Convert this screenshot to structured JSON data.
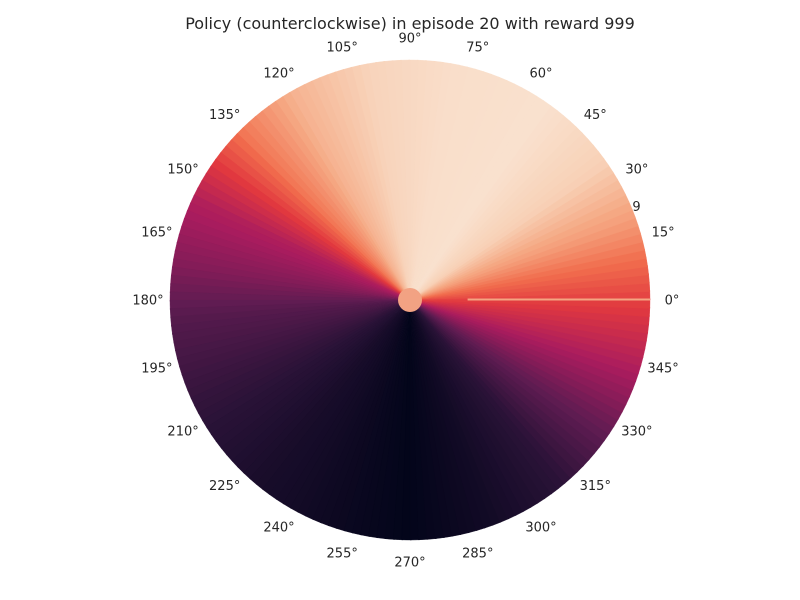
{
  "chart_data": {
    "type": "heatmap",
    "projection": "polar",
    "title": "Policy (counterclockwise) in episode 20 with reward 999",
    "angle_tick_labels": [
      "0°",
      "15°",
      "30°",
      "45°",
      "60°",
      "75°",
      "90°",
      "105°",
      "120°",
      "135°",
      "150°",
      "165°",
      "180°",
      "195°",
      "210°",
      "225°",
      "240°",
      "255°",
      "270°",
      "285°",
      "300°",
      "315°",
      "330°",
      "345°"
    ],
    "radial_tick_labels": [
      "9"
    ],
    "colormap": "rocket",
    "grid": false,
    "value_stops": [
      {
        "angle": 0,
        "value": 0.62
      },
      {
        "angle": 10,
        "value": 0.72
      },
      {
        "angle": 20,
        "value": 0.82
      },
      {
        "angle": 35,
        "value": 0.92
      },
      {
        "angle": 55,
        "value": 0.97
      },
      {
        "angle": 80,
        "value": 0.96
      },
      {
        "angle": 100,
        "value": 0.93
      },
      {
        "angle": 120,
        "value": 0.86
      },
      {
        "angle": 135,
        "value": 0.74
      },
      {
        "angle": 145,
        "value": 0.6
      },
      {
        "angle": 155,
        "value": 0.47
      },
      {
        "angle": 170,
        "value": 0.38
      },
      {
        "angle": 185,
        "value": 0.27
      },
      {
        "angle": 205,
        "value": 0.18
      },
      {
        "angle": 230,
        "value": 0.09
      },
      {
        "angle": 255,
        "value": 0.03
      },
      {
        "angle": 270,
        "value": 0.0
      },
      {
        "angle": 290,
        "value": 0.06
      },
      {
        "angle": 310,
        "value": 0.16
      },
      {
        "angle": 330,
        "value": 0.34
      },
      {
        "angle": 345,
        "value": 0.48
      },
      {
        "angle": 360,
        "value": 0.62
      }
    ],
    "agent_marker": {
      "angle": 0,
      "radius": 0,
      "color": "#f2a283"
    },
    "reference_line": {
      "angle": 0,
      "radius_start": 0.24,
      "radius_end": 1.0,
      "color": "#f4a582"
    }
  }
}
